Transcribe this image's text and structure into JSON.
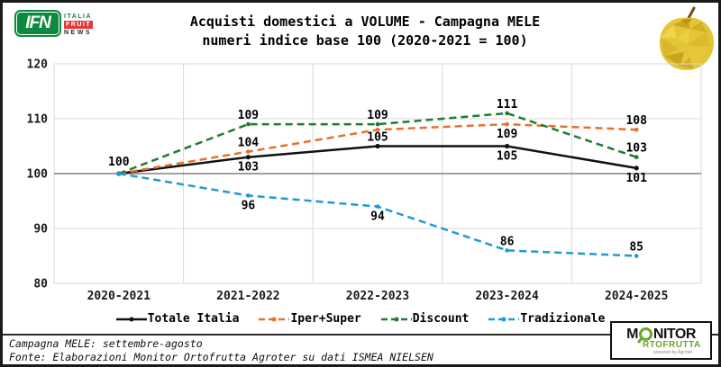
{
  "ifn_logo": {
    "abbr": "IFN",
    "italia": "ITALIA",
    "fruit": "FRUIT",
    "news": "NEWS"
  },
  "chart_data": {
    "type": "line",
    "title": "Acquisti domestici a VOLUME - Campagna MELE",
    "subtitle": "numeri indice base 100 (2020-2021 = 100)",
    "categories": [
      "2020-2021",
      "2021-2022",
      "2022-2023",
      "2023-2024",
      "2024-2025"
    ],
    "series": [
      {
        "name": "Totale Italia",
        "color": "#111111",
        "dash": false,
        "values": [
          100,
          103,
          105,
          105,
          101
        ],
        "label_pos": [
          null,
          "below",
          "above",
          "below",
          "below"
        ]
      },
      {
        "name": "Iper+Super",
        "color": "#e8702d",
        "dash": true,
        "values": [
          100,
          104,
          108,
          109,
          108
        ],
        "label_pos": [
          null,
          "above",
          null,
          "below",
          "above"
        ]
      },
      {
        "name": "Discount",
        "color": "#1e7b33",
        "dash": true,
        "values": [
          100,
          109,
          109,
          111,
          103
        ],
        "label_pos": [
          null,
          "above",
          "above",
          "above",
          "above"
        ]
      },
      {
        "name": "Tradizionale",
        "color": "#2199d6",
        "dash": true,
        "values": [
          100,
          96,
          94,
          86,
          85
        ],
        "label_pos": [
          null,
          "below",
          "below",
          "above",
          "above"
        ]
      }
    ],
    "start_label": "100",
    "ylim": [
      80,
      120
    ],
    "yticks": [
      80,
      90,
      100,
      110,
      120
    ],
    "baseline": 100,
    "grid": true,
    "legend_position": "bottom"
  },
  "footer": {
    "line1": "Campagna MELE: settembre-agosto",
    "line2": "Fonte: Elaborazioni Monitor Ortofrutta Agroter su dati ISMEA NIELSEN"
  },
  "monitor_logo": {
    "m": "M",
    "nitor": "NITOR",
    "ortofrutta_rest": "RTOFRUTTA",
    "powered_by": "powered by Agroter"
  }
}
